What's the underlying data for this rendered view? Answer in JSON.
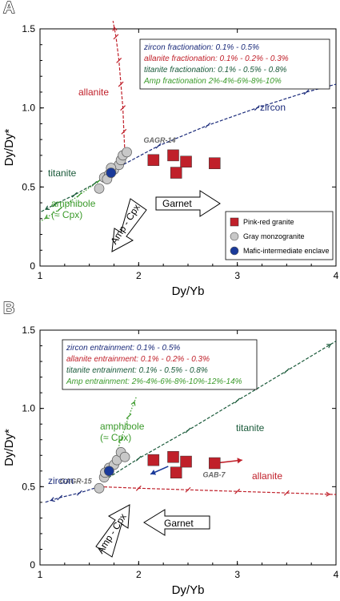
{
  "chart_data": [
    {
      "panel": "A",
      "type": "scatter",
      "xlabel": "Dy/Yb",
      "ylabel": "Dy/Dy*",
      "xlim": [
        1,
        4
      ],
      "ylim": [
        0,
        1.5
      ],
      "xticks": [
        "1",
        "2",
        "3",
        "4"
      ],
      "yticks": [
        "0",
        "0.5",
        "1.0",
        "1.5"
      ],
      "info_box": [
        {
          "text": "zircon fractionation: 0.1% - 0.5%",
          "color": "#1a2a7a"
        },
        {
          "text": "allanite fractionation: 0.1% - 0.2% - 0.3%",
          "color": "#c0202a"
        },
        {
          "text": "titanite fractionation: 0.1% - 0.5% - 0.8%",
          "color": "#1a5a3a"
        },
        {
          "text": "Amp fractionation 2%-4%-6%-8%-10%",
          "color": "#3a9a2a"
        }
      ],
      "sample_label": {
        "text": "GAGR-14",
        "x": 2.05,
        "y": 0.78
      },
      "arrows": [
        {
          "text": "Garnet",
          "direction": "right"
        },
        {
          "text": "Amp - Cpx",
          "direction": "down-left"
        }
      ],
      "legend": [
        {
          "label": "Pink-red granite",
          "color": "#c0202a",
          "marker": "square"
        },
        {
          "label": "Gray monzogranite",
          "color": "#c8c8c8",
          "marker": "circle"
        },
        {
          "label": "Mafic-intermediate enclave",
          "color": "#1a3a9a",
          "marker": "circle"
        }
      ],
      "series": [
        {
          "name": "Pink-red granite",
          "marker": "square",
          "color": "#c0202a",
          "x": [
            2.15,
            2.35,
            2.38,
            2.48,
            2.77
          ],
          "y": [
            0.67,
            0.7,
            0.59,
            0.66,
            0.65
          ]
        },
        {
          "name": "Gray monzogranite",
          "marker": "circle",
          "color": "#c8c8c8",
          "x": [
            1.6,
            1.65,
            1.7,
            1.75,
            1.8,
            1.82,
            1.84,
            1.88,
            1.68,
            1.72
          ],
          "y": [
            0.49,
            0.56,
            0.58,
            0.61,
            0.64,
            0.67,
            0.7,
            0.72,
            0.55,
            0.62
          ]
        },
        {
          "name": "Mafic-intermediate enclave",
          "marker": "circle",
          "color": "#1a3a9a",
          "x": [
            1.72
          ],
          "y": [
            0.59
          ]
        }
      ],
      "trends": [
        {
          "name": "zircon",
          "color": "#1a2a7a",
          "style": "dashed",
          "x": [
            1.72,
            2.2,
            2.7,
            3.2,
            3.7,
            4.0
          ],
          "y": [
            0.6,
            0.76,
            0.89,
            1.0,
            1.1,
            1.15
          ]
        },
        {
          "name": "allanite",
          "color": "#c0202a",
          "style": "dashed",
          "x": [
            1.86,
            1.85,
            1.84,
            1.82,
            1.8,
            1.77,
            1.74
          ],
          "y": [
            0.72,
            0.85,
            1.0,
            1.15,
            1.3,
            1.45,
            1.55
          ]
        },
        {
          "name": "titanite",
          "color": "#1a5a3a",
          "style": "dashed",
          "x": [
            1.72,
            1.55,
            1.35,
            1.15,
            1.0
          ],
          "y": [
            0.59,
            0.52,
            0.45,
            0.39,
            0.34
          ]
        },
        {
          "name": "amphibole\n(≈ Cpx)",
          "color": "#3a9a2a",
          "style": "dotted",
          "x": [
            1.78,
            1.6,
            1.4,
            1.2,
            1.0
          ],
          "y": [
            0.64,
            0.54,
            0.45,
            0.36,
            0.28
          ]
        }
      ]
    },
    {
      "panel": "B",
      "type": "scatter",
      "xlabel": "Dy/Yb",
      "ylabel": "Dy/Dy*",
      "xlim": [
        1,
        4
      ],
      "ylim": [
        0,
        1.5
      ],
      "xticks": [
        "1",
        "2",
        "3",
        "4"
      ],
      "yticks": [
        "0",
        "0.5",
        "1.0",
        "1.5"
      ],
      "info_box": [
        {
          "text": "zircon entrainment: 0.1% - 0.5%",
          "color": "#1a2a7a"
        },
        {
          "text": "allanite entrainment: 0.1% - 0.2% - 0.3%",
          "color": "#c0202a"
        },
        {
          "text": "titanite entrainment: 0.1% - 0.5% - 0.8%",
          "color": "#1a5a3a"
        },
        {
          "text": "Amp entrainment: 2%-4%-6%-8%-10%-12%-14%",
          "color": "#3a9a2a"
        }
      ],
      "sample_label": {
        "text": "GAGR-15",
        "x": 1.2,
        "y": 0.52
      },
      "sample_label_2": {
        "text": "GAB-7",
        "x": 2.65,
        "y": 0.56
      },
      "arrows": [
        {
          "text": "Garnet",
          "direction": "left"
        },
        {
          "text": "Amp - Cpx",
          "direction": "up-right"
        }
      ],
      "series": [
        {
          "name": "Pink-red granite",
          "marker": "square",
          "color": "#c0202a",
          "x": [
            2.15,
            2.35,
            2.38,
            2.48,
            2.77
          ],
          "y": [
            0.67,
            0.69,
            0.59,
            0.66,
            0.65
          ]
        },
        {
          "name": "Gray monzogranite",
          "marker": "circle",
          "color": "#c8c8c8",
          "x": [
            1.6,
            1.65,
            1.7,
            1.75,
            1.78,
            1.82,
            1.86,
            1.66
          ],
          "y": [
            0.49,
            0.56,
            0.62,
            0.64,
            0.67,
            0.72,
            0.69,
            0.59
          ]
        },
        {
          "name": "Mafic-intermediate enclave",
          "marker": "circle",
          "color": "#1a3a9a",
          "x": [
            1.7
          ],
          "y": [
            0.6
          ]
        }
      ],
      "trends": [
        {
          "name": "titanite",
          "color": "#1a5a3a",
          "style": "dashed",
          "x": [
            1.65,
            2.0,
            2.5,
            3.0,
            3.5,
            4.0
          ],
          "y": [
            0.54,
            0.68,
            0.86,
            1.05,
            1.24,
            1.43
          ]
        },
        {
          "name": "allanite",
          "color": "#c0202a",
          "style": "dashed",
          "x": [
            1.6,
            2.0,
            2.5,
            3.0,
            3.5,
            4.0
          ],
          "y": [
            0.5,
            0.49,
            0.48,
            0.47,
            0.46,
            0.45
          ]
        },
        {
          "name": "zircon",
          "color": "#1a2a7a",
          "style": "dashed",
          "x": [
            1.6,
            1.4,
            1.2,
            1.05
          ],
          "y": [
            0.5,
            0.46,
            0.43,
            0.4
          ]
        },
        {
          "name": "amphibole\n(≈ Cpx)",
          "color": "#3a9a2a",
          "style": "dotted",
          "x": [
            1.74,
            1.82,
            1.9,
            1.98
          ],
          "y": [
            0.64,
            0.8,
            0.95,
            1.08
          ]
        },
        {
          "name": "",
          "color": "#1a3a9a",
          "style": "solid",
          "x": [
            2.3,
            2.12
          ],
          "y": [
            0.63,
            0.58
          ]
        },
        {
          "name": "",
          "color": "#c0202a",
          "style": "solid",
          "x": [
            2.77,
            3.05
          ],
          "y": [
            0.65,
            0.67
          ]
        }
      ]
    }
  ]
}
